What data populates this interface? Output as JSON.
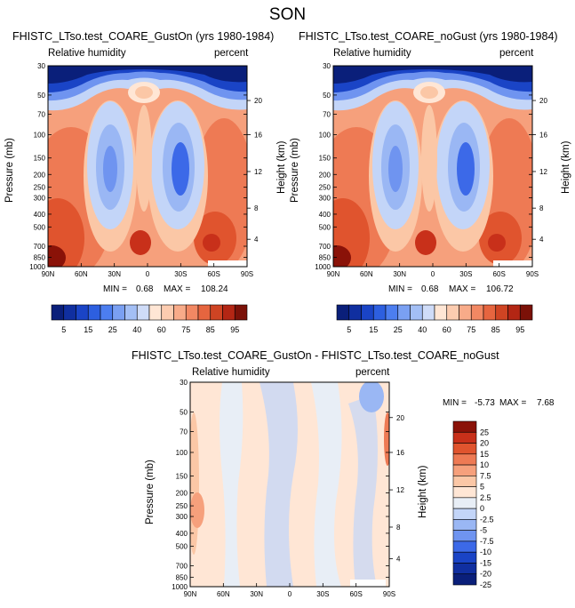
{
  "figure_title": "SON",
  "palettes": {
    "rh": [
      "#0a1f7a",
      "#102fa0",
      "#1a44c6",
      "#2d5fe0",
      "#4c7ef0",
      "#7aa0f2",
      "#a3bff5",
      "#cfdcf8",
      "#ffe6d5",
      "#fcccb0",
      "#f8ab89",
      "#f28863",
      "#e6653f",
      "#cf4423",
      "#b32614",
      "#7b1108"
    ],
    "diff": [
      "#0a1f7a",
      "#102fa0",
      "#1a44c6",
      "#3c69e8",
      "#6f94f0",
      "#9ab7f4",
      "#c3d5f8",
      "#e8eef6",
      "#ffe6d5",
      "#fbc7a6",
      "#f6a07c",
      "#ee7a54",
      "#e0542e",
      "#c8301a",
      "#8a1208"
    ]
  },
  "chart_data": [
    {
      "type": "heatmap",
      "title": "FHISTC_LTso.test_COARE_GustOn (yrs 1980-1984)",
      "variable": "Relative humidity",
      "units": "percent",
      "ylabel": "Pressure (mb)",
      "ylabel_right": "Height (km)",
      "x_tick_labels": [
        "90N",
        "60N",
        "30N",
        "0",
        "30S",
        "60S",
        "90S"
      ],
      "y_tick_labels": [
        "30",
        "50",
        "70",
        "100",
        "150",
        "200",
        "250",
        "300",
        "400",
        "500",
        "700",
        "850",
        "1000"
      ],
      "right_tick_labels": [
        "20",
        "16",
        "12",
        "8",
        "4"
      ],
      "min_label": "MIN =",
      "min": "0.68",
      "max_label": "MAX = ",
      "max": "108.24",
      "colorbar": {
        "orientation": "horizontal",
        "labels": [
          "5",
          "15",
          "25",
          "40",
          "60",
          "75",
          "85",
          "95"
        ],
        "levels": [
          5,
          10,
          15,
          20,
          25,
          30,
          40,
          50,
          60,
          65,
          70,
          75,
          80,
          85,
          90,
          95
        ]
      },
      "field_summary": {
        "upper_dry_layer_mb": [
          30,
          150
        ],
        "dry_subsidence_minima_pct": 15,
        "surface_moist_maxima_pct": 95
      }
    },
    {
      "type": "heatmap",
      "title": "FHISTC_LTso.test_COARE_noGust (yrs 1980-1984)",
      "variable": "Relative humidity",
      "units": "percent",
      "ylabel": "Pressure (mb)",
      "ylabel_right": "Height (km)",
      "x_tick_labels": [
        "90N",
        "60N",
        "30N",
        "0",
        "30S",
        "60S",
        "90S"
      ],
      "y_tick_labels": [
        "30",
        "50",
        "70",
        "100",
        "150",
        "200",
        "250",
        "300",
        "400",
        "500",
        "700",
        "850",
        "1000"
      ],
      "right_tick_labels": [
        "20",
        "16",
        "12",
        "8",
        "4"
      ],
      "min_label": "MIN =",
      "min": "0.68",
      "max_label": "MAX = ",
      "max": "106.72",
      "colorbar": {
        "orientation": "horizontal",
        "labels": [
          "5",
          "15",
          "25",
          "40",
          "60",
          "75",
          "85",
          "95"
        ],
        "levels": [
          5,
          10,
          15,
          20,
          25,
          30,
          40,
          50,
          60,
          65,
          70,
          75,
          80,
          85,
          90,
          95
        ]
      }
    },
    {
      "type": "heatmap",
      "title": "FHISTC_LTso.test_COARE_GustOn - FHISTC_LTso.test_COARE_noGust",
      "variable": "Relative humidity",
      "units": "percent",
      "ylabel": "Pressure (mb)",
      "ylabel_right": "Height (km)",
      "x_tick_labels": [
        "90N",
        "60N",
        "30N",
        "0",
        "30S",
        "60S",
        "90S"
      ],
      "y_tick_labels": [
        "30",
        "50",
        "70",
        "100",
        "150",
        "200",
        "250",
        "300",
        "400",
        "500",
        "700",
        "850",
        "1000"
      ],
      "right_tick_labels": [
        "20",
        "16",
        "12",
        "8",
        "4"
      ],
      "min_label": "MIN = ",
      "min": "-5.73",
      "max_label": "MAX = ",
      "max": "7.68",
      "colorbar": {
        "orientation": "vertical",
        "labels": [
          "25",
          "20",
          "15",
          "10",
          "7.5",
          "5",
          "2.5",
          "0",
          "-2.5",
          "-5",
          "-7.5",
          "-10",
          "-15",
          "-20",
          "-25"
        ],
        "levels": [
          25,
          20,
          15,
          10,
          7.5,
          5,
          2.5,
          0,
          -2.5,
          -5,
          -7.5,
          -10,
          -15,
          -20,
          -25
        ]
      }
    }
  ]
}
